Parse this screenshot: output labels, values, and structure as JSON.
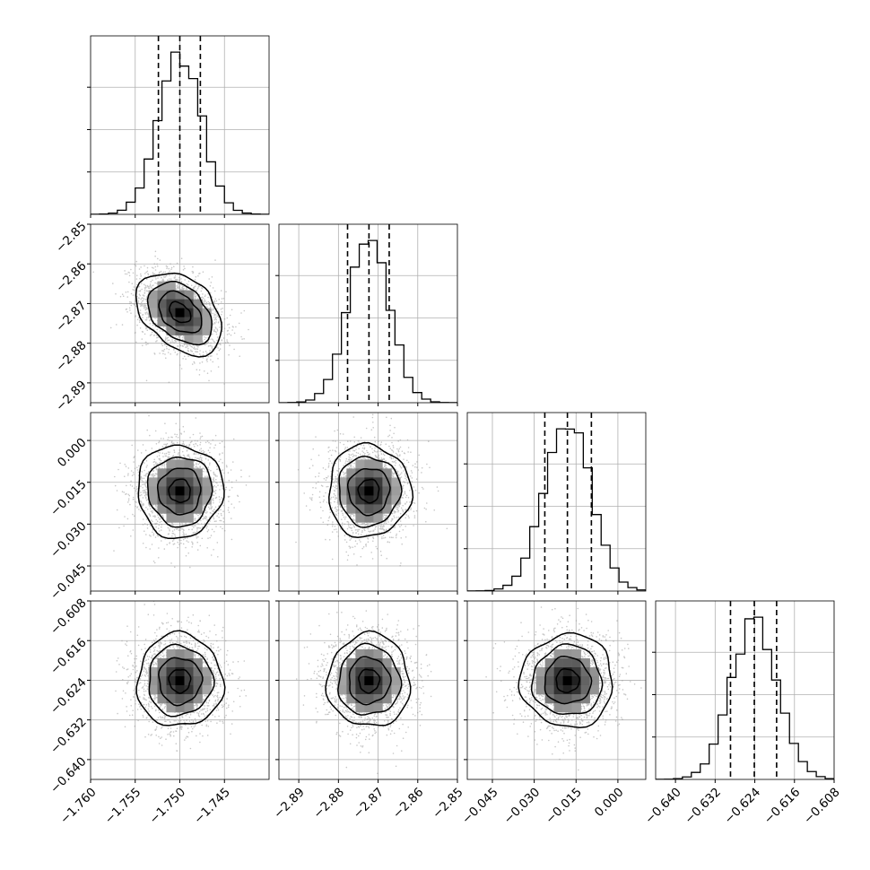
{
  "chart_data": {
    "type": "corner",
    "parameters": [
      {
        "range": [
          -1.76,
          -1.74
        ],
        "ticks": [
          -1.76,
          -1.755,
          -1.75,
          -1.745
        ],
        "tick_labels": [
          "−1.760",
          "−1.755",
          "−1.750",
          "−1.745"
        ],
        "quantiles": [
          -1.7524,
          -1.75,
          -1.7477
        ],
        "mean": -1.75,
        "sigma": 0.0024
      },
      {
        "range": [
          -2.895,
          -2.85
        ],
        "ticks": [
          -2.89,
          -2.88,
          -2.87,
          -2.86,
          -2.85
        ],
        "tick_labels": [
          "−2.89",
          "−2.88",
          "−2.87",
          "−2.86",
          "−2.85"
        ],
        "quantiles": [
          -2.8777,
          -2.8723,
          -2.8672
        ],
        "mean": -2.8723,
        "sigma": 0.0052
      },
      {
        "range": [
          -0.054,
          0.01
        ],
        "ticks": [
          -0.045,
          -0.03,
          -0.015,
          0.0
        ],
        "tick_labels": [
          "−0.045",
          "−0.030",
          "−0.015",
          "0.000"
        ],
        "quantiles": [
          -0.0262,
          -0.0181,
          -0.0095
        ],
        "mean": -0.0181,
        "sigma": 0.0083
      },
      {
        "range": [
          -0.644,
          -0.608
        ],
        "ticks": [
          -0.64,
          -0.632,
          -0.624,
          -0.616,
          -0.608
        ],
        "tick_labels": [
          "−0.640",
          "−0.632",
          "−0.624",
          "−0.616",
          "−0.608"
        ],
        "quantiles": [
          -0.6289,
          -0.6241,
          -0.6196
        ],
        "mean": -0.6241,
        "sigma": 0.0047
      }
    ],
    "correlations": [
      {
        "i": 1,
        "j": 0,
        "rho": -0.38
      },
      {
        "i": 2,
        "j": 0,
        "rho": 0.0
      },
      {
        "i": 2,
        "j": 1,
        "rho": 0.0
      },
      {
        "i": 3,
        "j": 0,
        "rho": 0.0
      },
      {
        "i": 3,
        "j": 1,
        "rho": 0.0
      },
      {
        "i": 3,
        "j": 2,
        "rho": 0.0
      }
    ],
    "histogram_bins": 20,
    "grid": true,
    "colors": {
      "line": "#000000",
      "points": "#9a9a9a",
      "grid": "#b0b0b0"
    }
  }
}
